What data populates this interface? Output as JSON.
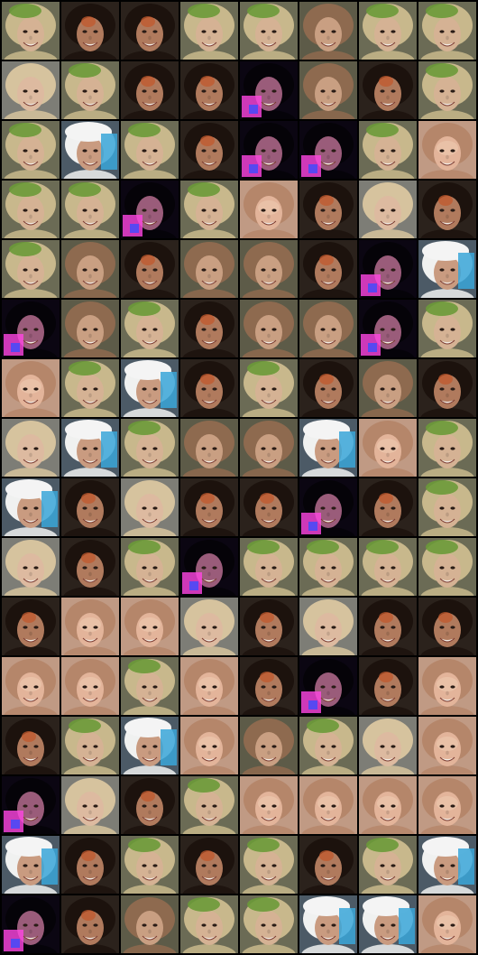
{
  "grid": {
    "rows": 16,
    "cols": 8,
    "background": "#000000",
    "content": "generated-face-samples",
    "palettes": {
      "light_skin_bright_hair": {
        "bg": "#6d6a58",
        "hair": "#d8c9a0",
        "skin": "#d9b79a",
        "accent": "#5f8c3a"
      },
      "dark_curly_hair": {
        "bg": "#2b221c",
        "hair": "#1c120d",
        "skin": "#b07a5d",
        "accent": "#c25a2e"
      },
      "green_hat": {
        "bg": "#6b6b55",
        "hair": "#c8b88c",
        "skin": "#d5b294",
        "accent": "#6b9a39"
      },
      "white_blue_cap": {
        "bg": "#4c5a66",
        "hair": "#f0f1f0",
        "skin": "#c99b80",
        "accent": "#39a6d8"
      },
      "magenta_glitch": {
        "bg": "#0b0612",
        "hair": "#050308",
        "skin": "#9a5c7a",
        "accent": "#ff46e4"
      },
      "peach_portrait": {
        "bg": "#c09a84",
        "hair": "#b5866a",
        "skin": "#e3b49a",
        "accent": "#f0d0b8"
      },
      "olive_portrait": {
        "bg": "#5d5b48",
        "hair": "#8e6a4f",
        "skin": "#c99f82",
        "accent": "#3f3a2e"
      },
      "blonde_grey": {
        "bg": "#7d7d76",
        "hair": "#d6c39e",
        "skin": "#ddbaa0",
        "accent": "#9b9488"
      }
    },
    "layout": [
      [
        "green_hat",
        "dark_curly_hair",
        "dark_curly_hair",
        "green_hat",
        "green_hat",
        "olive_portrait",
        "green_hat",
        "green_hat"
      ],
      [
        "blonde_grey",
        "green_hat",
        "dark_curly_hair",
        "dark_curly_hair",
        "magenta_glitch",
        "olive_portrait",
        "dark_curly_hair",
        "green_hat"
      ],
      [
        "green_hat",
        "white_blue_cap",
        "green_hat",
        "dark_curly_hair",
        "magenta_glitch",
        "magenta_glitch",
        "green_hat",
        "peach_portrait"
      ],
      [
        "green_hat",
        "green_hat",
        "magenta_glitch",
        "green_hat",
        "peach_portrait",
        "dark_curly_hair",
        "blonde_grey",
        "dark_curly_hair"
      ],
      [
        "green_hat",
        "olive_portrait",
        "dark_curly_hair",
        "olive_portrait",
        "olive_portrait",
        "dark_curly_hair",
        "magenta_glitch",
        "white_blue_cap"
      ],
      [
        "magenta_glitch",
        "olive_portrait",
        "green_hat",
        "dark_curly_hair",
        "olive_portrait",
        "olive_portrait",
        "magenta_glitch",
        "green_hat"
      ],
      [
        "peach_portrait",
        "green_hat",
        "white_blue_cap",
        "dark_curly_hair",
        "green_hat",
        "dark_curly_hair",
        "olive_portrait",
        "dark_curly_hair"
      ],
      [
        "blonde_grey",
        "white_blue_cap",
        "green_hat",
        "olive_portrait",
        "olive_portrait",
        "white_blue_cap",
        "peach_portrait",
        "green_hat"
      ],
      [
        "white_blue_cap",
        "dark_curly_hair",
        "blonde_grey",
        "dark_curly_hair",
        "dark_curly_hair",
        "magenta_glitch",
        "dark_curly_hair",
        "green_hat"
      ],
      [
        "blonde_grey",
        "dark_curly_hair",
        "green_hat",
        "magenta_glitch",
        "green_hat",
        "green_hat",
        "green_hat",
        "green_hat"
      ],
      [
        "dark_curly_hair",
        "peach_portrait",
        "peach_portrait",
        "blonde_grey",
        "dark_curly_hair",
        "blonde_grey",
        "dark_curly_hair",
        "dark_curly_hair"
      ],
      [
        "peach_portrait",
        "peach_portrait",
        "green_hat",
        "peach_portrait",
        "dark_curly_hair",
        "magenta_glitch",
        "dark_curly_hair",
        "peach_portrait"
      ],
      [
        "dark_curly_hair",
        "green_hat",
        "white_blue_cap",
        "peach_portrait",
        "olive_portrait",
        "green_hat",
        "blonde_grey",
        "peach_portrait"
      ],
      [
        "magenta_glitch",
        "blonde_grey",
        "dark_curly_hair",
        "green_hat",
        "peach_portrait",
        "peach_portrait",
        "peach_portrait",
        "peach_portrait"
      ],
      [
        "white_blue_cap",
        "dark_curly_hair",
        "green_hat",
        "dark_curly_hair",
        "green_hat",
        "dark_curly_hair",
        "green_hat",
        "white_blue_cap"
      ],
      [
        "magenta_glitch",
        "dark_curly_hair",
        "olive_portrait",
        "green_hat",
        "green_hat",
        "white_blue_cap",
        "white_blue_cap",
        "peach_portrait"
      ]
    ]
  }
}
